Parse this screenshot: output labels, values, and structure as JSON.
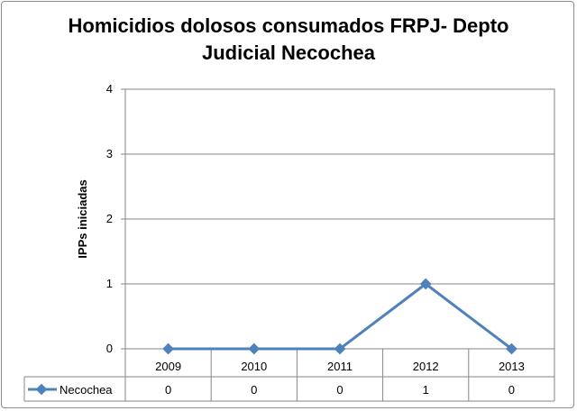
{
  "chart_data": {
    "type": "line",
    "title_line1": "Homicidios dolosos consumados FRPJ- Depto",
    "title_line2": "Judicial Necochea",
    "xlabel": "",
    "ylabel": "IPPs iniciadas",
    "categories": [
      "2009",
      "2010",
      "2011",
      "2012",
      "2013"
    ],
    "ylim": [
      0,
      4
    ],
    "yticks": [
      "0",
      "1",
      "2",
      "3",
      "4"
    ],
    "grid": true,
    "legend": "data-table",
    "series": [
      {
        "name": "Necochea",
        "values": [
          0,
          0,
          0,
          1,
          0
        ],
        "color": "#4f81bd"
      }
    ],
    "table_values": [
      "0",
      "0",
      "0",
      "1",
      "0"
    ]
  }
}
